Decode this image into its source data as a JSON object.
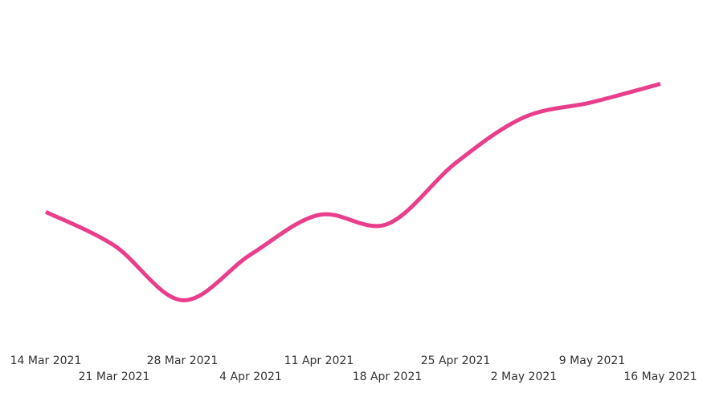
{
  "chart_data": {
    "type": "line",
    "x": [
      "14 Mar 2021",
      "21 Mar 2021",
      "28 Mar 2021",
      "4 Apr 2021",
      "11 Apr 2021",
      "18 Apr 2021",
      "25 Apr 2021",
      "2 May 2021",
      "9 May 2021",
      "16 May 2021"
    ],
    "series": [
      {
        "color": "#e83e8c",
        "values": [
          41,
          30,
          12,
          27,
          40,
          37,
          57,
          72,
          77,
          83
        ]
      }
    ],
    "ylim": [
      0,
      100
    ]
  }
}
